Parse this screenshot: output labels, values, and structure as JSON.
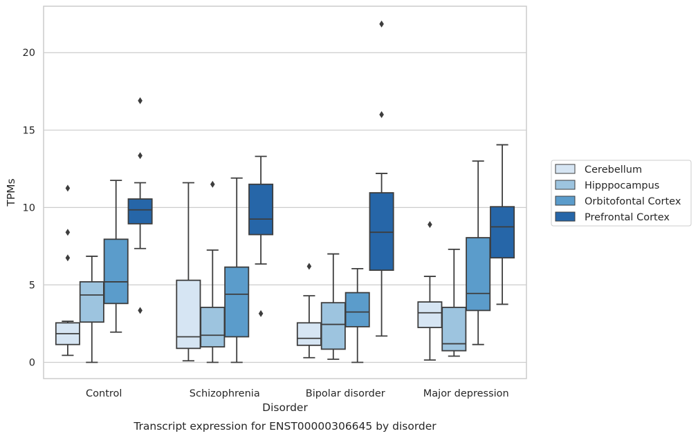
{
  "chart_data": {
    "type": "box",
    "caption": "Transcript expression for ENST00000306645 by disorder",
    "xlabel": "Disorder",
    "ylabel": "TPMs",
    "ylim": [
      -1.05,
      23.0
    ],
    "yticks": [
      0,
      5,
      10,
      15,
      20
    ],
    "grid": "horizontal",
    "legend_position": "right",
    "categories": [
      "Control",
      "Schizophrenia",
      "Bipolar disorder",
      "Major depression"
    ],
    "series": [
      {
        "name": "Cerebellum",
        "color": "#d6e5f3",
        "boxes": [
          {
            "whislo": 0.45,
            "q1": 1.15,
            "med": 1.85,
            "q3": 2.55,
            "whishi": 2.65,
            "fliers": [
              6.75,
              8.4,
              11.25
            ]
          },
          {
            "whislo": 0.1,
            "q1": 0.9,
            "med": 1.65,
            "q3": 5.3,
            "whishi": 11.6,
            "fliers": []
          },
          {
            "whislo": 0.3,
            "q1": 1.1,
            "med": 1.55,
            "q3": 2.55,
            "whishi": 4.3,
            "fliers": [
              6.2
            ]
          },
          {
            "whislo": 0.15,
            "q1": 2.25,
            "med": 3.2,
            "q3": 3.9,
            "whishi": 5.55,
            "fliers": [
              8.9
            ]
          }
        ]
      },
      {
        "name": "Hipppocampus",
        "color": "#9dc4df",
        "boxes": [
          {
            "whislo": 0.0,
            "q1": 2.6,
            "med": 4.35,
            "q3": 5.2,
            "whishi": 6.85,
            "fliers": []
          },
          {
            "whislo": 0.0,
            "q1": 1.0,
            "med": 1.75,
            "q3": 3.55,
            "whishi": 7.25,
            "fliers": [
              11.5
            ]
          },
          {
            "whislo": 0.2,
            "q1": 0.85,
            "med": 2.45,
            "q3": 3.85,
            "whishi": 7.0,
            "fliers": []
          },
          {
            "whislo": 0.4,
            "q1": 0.75,
            "med": 1.2,
            "q3": 3.55,
            "whishi": 7.3,
            "fliers": []
          }
        ]
      },
      {
        "name": "Orbitofontal Cortex",
        "color": "#5b9ccb",
        "boxes": [
          {
            "whislo": 1.95,
            "q1": 3.8,
            "med": 5.2,
            "q3": 7.95,
            "whishi": 11.75,
            "fliers": []
          },
          {
            "whislo": 0.0,
            "q1": 1.65,
            "med": 4.4,
            "q3": 6.15,
            "whishi": 11.9,
            "fliers": []
          },
          {
            "whislo": 0.0,
            "q1": 2.3,
            "med": 3.25,
            "q3": 4.5,
            "whishi": 6.05,
            "fliers": []
          },
          {
            "whislo": 1.15,
            "q1": 3.35,
            "med": 4.45,
            "q3": 8.05,
            "whishi": 13.0,
            "fliers": []
          }
        ]
      },
      {
        "name": "Prefrontal Cortex",
        "color": "#2666a8",
        "boxes": [
          {
            "whislo": 7.35,
            "q1": 8.95,
            "med": 9.85,
            "q3": 10.55,
            "whishi": 11.6,
            "fliers": [
              3.35,
              13.35,
              16.9
            ]
          },
          {
            "whislo": 6.35,
            "q1": 8.25,
            "med": 9.25,
            "q3": 11.5,
            "whishi": 13.3,
            "fliers": [
              3.15
            ]
          },
          {
            "whislo": 1.7,
            "q1": 5.95,
            "med": 8.4,
            "q3": 10.95,
            "whishi": 12.2,
            "fliers": [
              16.0,
              21.85
            ]
          },
          {
            "whislo": 3.75,
            "q1": 6.75,
            "med": 8.75,
            "q3": 10.05,
            "whishi": 14.05,
            "fliers": []
          }
        ]
      }
    ]
  }
}
